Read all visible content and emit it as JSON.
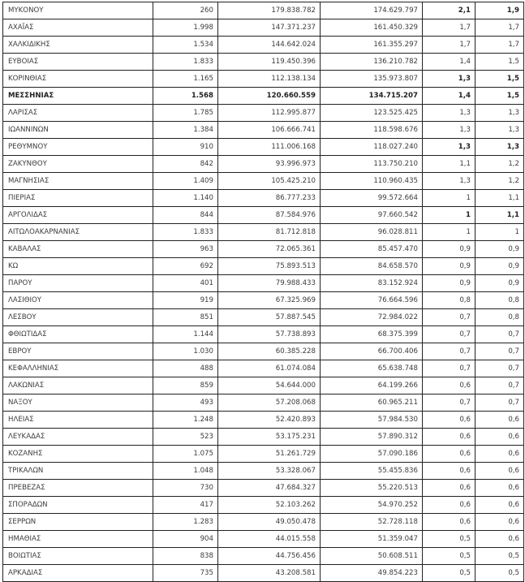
{
  "table": {
    "rows": [
      {
        "name": "ΜΥΚΟΝΟΥ",
        "c1": "260",
        "c2": "179.838.782",
        "c3": "174.629.797",
        "c4": "2,1",
        "c5": "1,9",
        "bold": [
          4,
          5
        ]
      },
      {
        "name": "ΑΧΑΪΑΣ",
        "c1": "1.998",
        "c2": "147.371.237",
        "c3": "161.450.329",
        "c4": "1,7",
        "c5": "1,7"
      },
      {
        "name": "ΧΑΛΚΙΔΙΚΗΣ",
        "c1": "1.534",
        "c2": "144.642.024",
        "c3": "161.355.297",
        "c4": "1,7",
        "c5": "1,7"
      },
      {
        "name": "ΕΥΒΟΙΑΣ",
        "c1": "1.833",
        "c2": "119.450.396",
        "c3": "136.210.782",
        "c4": "1,4",
        "c5": "1,5"
      },
      {
        "name": "ΚΟΡΙΝΘΙΑΣ",
        "c1": "1.165",
        "c2": "112.138.134",
        "c3": "135.973.807",
        "c4": "1,3",
        "c5": "1,5",
        "bold": [
          4,
          5
        ]
      },
      {
        "name": "ΜΕΣΣΗΝΙΑΣ",
        "c1": "1.568",
        "c2": "120.660.559",
        "c3": "134.715.207",
        "c4": "1,4",
        "c5": "1,5",
        "bold": [
          0,
          1,
          2,
          3,
          4,
          5
        ]
      },
      {
        "name": "ΛΑΡΙΣΑΣ",
        "c1": "1.785",
        "c2": "112.995.877",
        "c3": "123.525.425",
        "c4": "1,3",
        "c5": "1,3"
      },
      {
        "name": "ΙΩΑΝΝΙΝΩΝ",
        "c1": "1.384",
        "c2": "106.666.741",
        "c3": "118.598.676",
        "c4": "1,3",
        "c5": "1,3"
      },
      {
        "name": "ΡΕΘΥΜΝΟΥ",
        "c1": "910",
        "c2": "111.006.168",
        "c3": "118.027.240",
        "c4": "1,3",
        "c5": "1,3",
        "bold": [
          4,
          5
        ]
      },
      {
        "name": "ΖΑΚΥΝΘΟΥ",
        "c1": "842",
        "c2": "93.996.973",
        "c3": "113.750.210",
        "c4": "1,1",
        "c5": "1,2"
      },
      {
        "name": "ΜΑΓΝΗΣΙΑΣ",
        "c1": "1.409",
        "c2": "105.425.210",
        "c3": "110.960.435",
        "c4": "1,3",
        "c5": "1,2"
      },
      {
        "name": "ΠΙΕΡΙΑΣ",
        "c1": "1.140",
        "c2": "86.777.233",
        "c3": "99.572.664",
        "c4": "1",
        "c5": "1,1"
      },
      {
        "name": "ΑΡΓΟΛΙΔΑΣ",
        "c1": "844",
        "c2": "87.584.976",
        "c3": "97.660.542",
        "c4": "1",
        "c5": "1,1",
        "bold": [
          4,
          5
        ]
      },
      {
        "name": "ΑΙΤΩΛΟΑΚΑΡΝΑΝΙΑΣ",
        "c1": "1.833",
        "c2": "81.712.818",
        "c3": "96.028.811",
        "c4": "1",
        "c5": "1"
      },
      {
        "name": "ΚΑΒΑΛΑΣ",
        "c1": "963",
        "c2": "72.065.361",
        "c3": "85.457.470",
        "c4": "0,9",
        "c5": "0,9"
      },
      {
        "name": "ΚΩ",
        "c1": "692",
        "c2": "75.893.513",
        "c3": "84.658.570",
        "c4": "0,9",
        "c5": "0,9"
      },
      {
        "name": "ΠΑΡΟΥ",
        "c1": "401",
        "c2": "79.988.433",
        "c3": "83.152.924",
        "c4": "0,9",
        "c5": "0,9"
      },
      {
        "name": "ΛΑΣΙΘΙΟΥ",
        "c1": "919",
        "c2": "67.325.969",
        "c3": "76.664.596",
        "c4": "0,8",
        "c5": "0,8"
      },
      {
        "name": "ΛΕΣΒΟΥ",
        "c1": "851",
        "c2": "57.887.545",
        "c3": "72.984.022",
        "c4": "0,7",
        "c5": "0,8"
      },
      {
        "name": "ΦΘΙΩΤΙΔΑΣ",
        "c1": "1.144",
        "c2": "57.738.893",
        "c3": "68.375.399",
        "c4": "0,7",
        "c5": "0,7"
      },
      {
        "name": "ΕΒΡΟΥ",
        "c1": "1.030",
        "c2": "60.385.228",
        "c3": "66.700.406",
        "c4": "0,7",
        "c5": "0,7"
      },
      {
        "name": "ΚΕΦΑΛΛΗΝΙΑΣ",
        "c1": "488",
        "c2": "61.074.084",
        "c3": "65.638.748",
        "c4": "0,7",
        "c5": "0,7"
      },
      {
        "name": "ΛΑΚΩΝΙΑΣ",
        "c1": "859",
        "c2": "54.644.000",
        "c3": "64.199.266",
        "c4": "0,6",
        "c5": "0,7"
      },
      {
        "name": "ΝΑΞΟΥ",
        "c1": "493",
        "c2": "57.208.068",
        "c3": "60.965.211",
        "c4": "0,7",
        "c5": "0,7"
      },
      {
        "name": "ΗΛΕΙΑΣ",
        "c1": "1.248",
        "c2": "52.420.893",
        "c3": "57.984.530",
        "c4": "0,6",
        "c5": "0,6"
      },
      {
        "name": "ΛΕΥΚΑΔΑΣ",
        "c1": "523",
        "c2": "53.175.231",
        "c3": "57.890.312",
        "c4": "0,6",
        "c5": "0,6"
      },
      {
        "name": "ΚΟΖΑΝΗΣ",
        "c1": "1.075",
        "c2": "51.261.729",
        "c3": "57.090.186",
        "c4": "0,6",
        "c5": "0,6"
      },
      {
        "name": "ΤΡΙΚΑΛΩΝ",
        "c1": "1.048",
        "c2": "53.328.067",
        "c3": "55.455.836",
        "c4": "0,6",
        "c5": "0,6"
      },
      {
        "name": "ΠΡΕΒΕΖΑΣ",
        "c1": "730",
        "c2": "47.684.327",
        "c3": "55.220.513",
        "c4": "0,6",
        "c5": "0,6"
      },
      {
        "name": "ΣΠΟΡΑΔΩΝ",
        "c1": "417",
        "c2": "52.103.262",
        "c3": "54.970.252",
        "c4": "0,6",
        "c5": "0,6"
      },
      {
        "name": "ΣΕΡΡΩΝ",
        "c1": "1.283",
        "c2": "49.050.478",
        "c3": "52.728.118",
        "c4": "0,6",
        "c5": "0,6"
      },
      {
        "name": "ΗΜΑΘΙΑΣ",
        "c1": "904",
        "c2": "44.015.558",
        "c3": "51.359.047",
        "c4": "0,5",
        "c5": "0,6"
      },
      {
        "name": "ΒΟΙΩΤΙΑΣ",
        "c1": "838",
        "c2": "44.756.456",
        "c3": "50.608.511",
        "c4": "0,5",
        "c5": "0,5"
      },
      {
        "name": "ΑΡΚΑΔΙΑΣ",
        "c1": "735",
        "c2": "43.208.581",
        "c3": "49.854.223",
        "c4": "0,5",
        "c5": "0,5"
      }
    ]
  }
}
